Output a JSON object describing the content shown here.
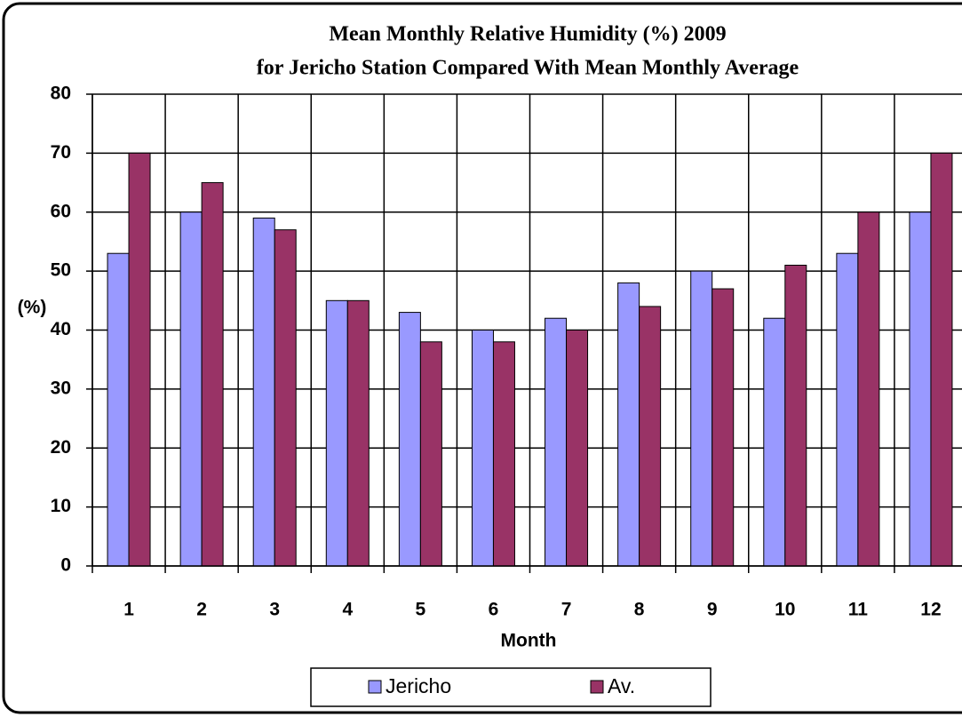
{
  "chart_data": {
    "type": "bar",
    "title": [
      "Mean Monthly Relative Humidity (%) 2009",
      "for Jericho Station Compared With Mean Monthly Average"
    ],
    "x_label": "Month",
    "y_label": "(%)",
    "categories": [
      "1",
      "2",
      "3",
      "4",
      "5",
      "6",
      "7",
      "8",
      "9",
      "10",
      "11",
      "12"
    ],
    "series": [
      {
        "name": "Jericho",
        "color": "#9999ff",
        "values": [
          53,
          60,
          59,
          45,
          43,
          40,
          42,
          48,
          50,
          42,
          53,
          60
        ]
      },
      {
        "name": "Av.",
        "color": "#993366",
        "values": [
          70,
          65,
          57,
          45,
          38,
          38,
          40,
          44,
          47,
          51,
          60,
          70
        ]
      }
    ],
    "ylim": [
      0,
      80
    ],
    "yticks": [
      0,
      10,
      20,
      30,
      40,
      50,
      60,
      70,
      80
    ],
    "grid": true,
    "legend": "bottom"
  }
}
